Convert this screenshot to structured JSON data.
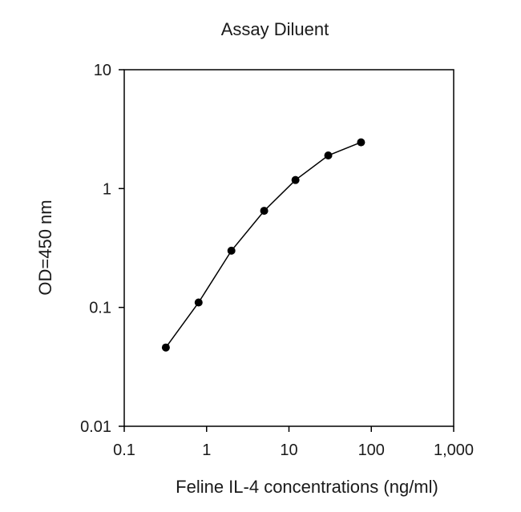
{
  "chart_data": {
    "type": "line",
    "title": "Assay Diluent",
    "xlabel": "Feline IL-4 concentrations (ng/ml)",
    "ylabel": "OD=450 nm",
    "x_scale": "log",
    "y_scale": "log",
    "xlim": [
      0.1,
      1000
    ],
    "ylim": [
      0.01,
      10
    ],
    "x_ticks": [
      0.1,
      1,
      10,
      100,
      1000
    ],
    "x_tick_labels": [
      "0.1",
      "1",
      "10",
      "100",
      "1,000"
    ],
    "y_ticks": [
      0.01,
      0.1,
      1,
      10
    ],
    "y_tick_labels": [
      "0.01",
      "0.1",
      "1",
      "10"
    ],
    "grid": false,
    "legend": "none",
    "series": [
      {
        "marker": "circle",
        "color": "#000000",
        "x": [
          0.32,
          0.8,
          2,
          5,
          12,
          30,
          75
        ],
        "y": [
          0.046,
          0.11,
          0.3,
          0.65,
          1.18,
          1.9,
          2.45
        ]
      }
    ]
  }
}
